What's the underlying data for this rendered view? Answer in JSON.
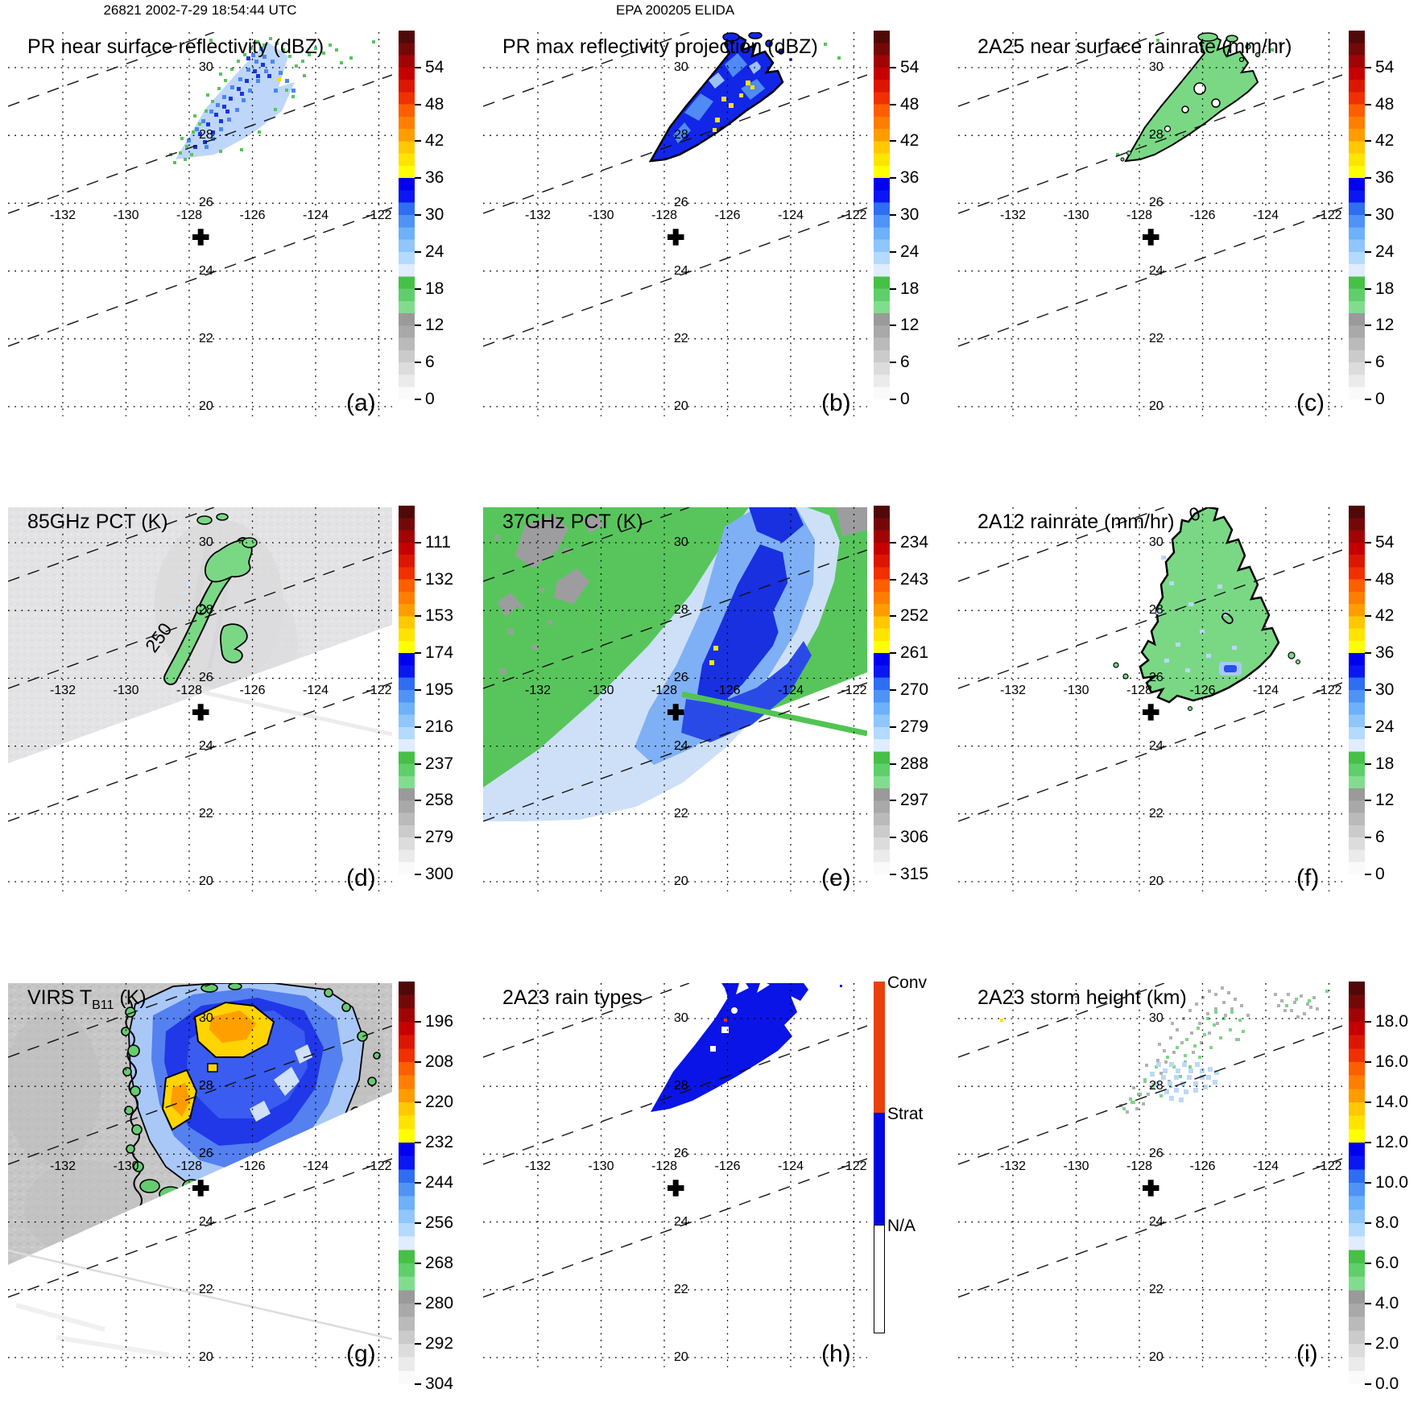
{
  "figure": {
    "left_supertitle": "26821 2002-7-29 18:54:44 UTC",
    "center_supertitle": "EPA 200205 ELIDA"
  },
  "grid": {
    "lon_labels": [
      "-132",
      "-130",
      "-128",
      "-126",
      "-124",
      "-122"
    ],
    "lat_labels": [
      "30",
      "28",
      "26",
      "24",
      "22",
      "20"
    ]
  },
  "colorbar_palette_top_to_bottom": [
    "#500808",
    "#740808",
    "#a00404",
    "#c60000",
    "#dc1600",
    "#f03000",
    "#fd5e00",
    "#ff7e00",
    "#ff9c00",
    "#ffc800",
    "#ffe400",
    "#ffff00",
    "#0000f0",
    "#0a17f2",
    "#2e6ef2",
    "#4f93f7",
    "#6cb1fa",
    "#8fc6fc",
    "#b4daff",
    "#e0ecff",
    "#46c046",
    "#5ecf6a",
    "#82dc8e",
    "#9a9a9a",
    "#a9a9a9",
    "#bababa",
    "#cbcbcb",
    "#dcdcdc",
    "#ebebeb",
    "#fafafa"
  ],
  "panels": [
    {
      "letter": "(a)",
      "title": "PR near surface reflectivity (dBZ)",
      "colorbar": {
        "kind": "gradient",
        "ticks": [
          "54",
          "48",
          "42",
          "36",
          "30",
          "24",
          "18",
          "12",
          "6",
          "0"
        ]
      }
    },
    {
      "letter": "(b)",
      "title": "PR max reflectivity projection (dBZ)",
      "colorbar": {
        "kind": "gradient",
        "ticks": [
          "54",
          "48",
          "42",
          "36",
          "30",
          "24",
          "18",
          "12",
          "6",
          "0"
        ]
      }
    },
    {
      "letter": "(c)",
      "title": "2A25 near surface rainrate (mm/hr)",
      "colorbar": {
        "kind": "gradient",
        "ticks": [
          "54",
          "48",
          "42",
          "36",
          "30",
          "24",
          "18",
          "12",
          "6",
          "0"
        ]
      }
    },
    {
      "letter": "(d)",
      "title": "85GHz PCT (K)",
      "contour_label": "250",
      "colorbar": {
        "kind": "gradient",
        "ticks": [
          "111",
          "132",
          "153",
          "174",
          "195",
          "216",
          "237",
          "258",
          "279",
          "300"
        ]
      }
    },
    {
      "letter": "(e)",
      "title": "37GHz PCT (K)",
      "colorbar": {
        "kind": "gradient",
        "ticks": [
          "234",
          "243",
          "252",
          "261",
          "270",
          "279",
          "288",
          "297",
          "306",
          "315"
        ]
      }
    },
    {
      "letter": "(f)",
      "title": "2A12 rainrate (mm/hr)",
      "contour_label": "0",
      "colorbar": {
        "kind": "gradient",
        "ticks": [
          "54",
          "48",
          "42",
          "36",
          "30",
          "24",
          "18",
          "12",
          "6",
          "0"
        ]
      }
    },
    {
      "letter": "(g)",
      "title_pre": "VIRS T",
      "title_sub": "B11",
      "title_post": " (K)",
      "colorbar": {
        "kind": "gradient",
        "ticks": [
          "196",
          "208",
          "220",
          "232",
          "244",
          "256",
          "268",
          "280",
          "292",
          "304"
        ]
      }
    },
    {
      "letter": "(h)",
      "title": "2A23 rain types",
      "colorbar": {
        "kind": "segments",
        "segments": [
          {
            "label": "Conv",
            "color": "#e8420a"
          },
          {
            "label": "Strat",
            "color": "#0008e0"
          },
          {
            "label": "N/A",
            "color": "#ffffff"
          }
        ]
      }
    },
    {
      "letter": "(i)",
      "title": "2A23 storm height (km)",
      "colorbar": {
        "kind": "gradient",
        "ticks": [
          "18.0",
          "16.0",
          "14.0",
          "12.0",
          "10.0",
          "8.0",
          "6.0",
          "4.0",
          "2.0",
          "0.0"
        ]
      }
    }
  ],
  "chart_data": {
    "type": "heatmap",
    "layout": "3x3 satellite map panels, shared lon/lat grid",
    "x_ticks": [
      -132,
      -130,
      -128,
      -126,
      -124,
      -122
    ],
    "y_ticks": [
      30,
      28,
      26,
      24,
      22,
      20
    ],
    "xlim": [
      -133.7,
      -121.6
    ],
    "ylim": [
      19.7,
      31.0
    ],
    "grid": "dotted",
    "panels": [
      {
        "label": "(a)",
        "title": "PR near surface reflectivity (dBZ)",
        "colorbar_ticks": [
          54,
          48,
          42,
          36,
          30,
          24,
          18,
          12,
          6,
          0
        ],
        "colorbar_range": [
          0,
          60
        ]
      },
      {
        "label": "(b)",
        "title": "PR max reflectivity projection (dBZ)",
        "colorbar_ticks": [
          54,
          48,
          42,
          36,
          30,
          24,
          18,
          12,
          6,
          0
        ],
        "colorbar_range": [
          0,
          60
        ]
      },
      {
        "label": "(c)",
        "title": "2A25 near surface rainrate (mm/hr)",
        "colorbar_ticks": [
          54,
          48,
          42,
          36,
          30,
          24,
          18,
          12,
          6,
          0
        ],
        "colorbar_range": [
          0,
          60
        ]
      },
      {
        "label": "(d)",
        "title": "85GHz PCT (K)",
        "colorbar_ticks": [
          111,
          132,
          153,
          174,
          195,
          216,
          237,
          258,
          279,
          300
        ],
        "contour_level": 250
      },
      {
        "label": "(e)",
        "title": "37GHz PCT (K)",
        "colorbar_ticks": [
          234,
          243,
          252,
          261,
          270,
          279,
          288,
          297,
          306,
          315
        ]
      },
      {
        "label": "(f)",
        "title": "2A12 rainrate (mm/hr)",
        "colorbar_ticks": [
          54,
          48,
          42,
          36,
          30,
          24,
          18,
          12,
          6,
          0
        ],
        "contour_level": 0
      },
      {
        "label": "(g)",
        "title": "VIRS T_B11 (K)",
        "colorbar_ticks": [
          196,
          208,
          220,
          232,
          244,
          256,
          268,
          280,
          292,
          304
        ]
      },
      {
        "label": "(h)",
        "title": "2A23 rain types",
        "categories": [
          "Conv",
          "Strat",
          "N/A"
        ]
      },
      {
        "label": "(i)",
        "title": "2A23 storm height (km)",
        "colorbar_ticks": [
          18.0,
          16.0,
          14.0,
          12.0,
          10.0,
          8.0,
          6.0,
          4.0,
          2.0,
          0.0
        ]
      }
    ],
    "annotations": [
      "storm center marker + near lon -127.7 lat 25.2 in every panel",
      "dashed diagonal satellite swath edge lines in every panel"
    ]
  }
}
